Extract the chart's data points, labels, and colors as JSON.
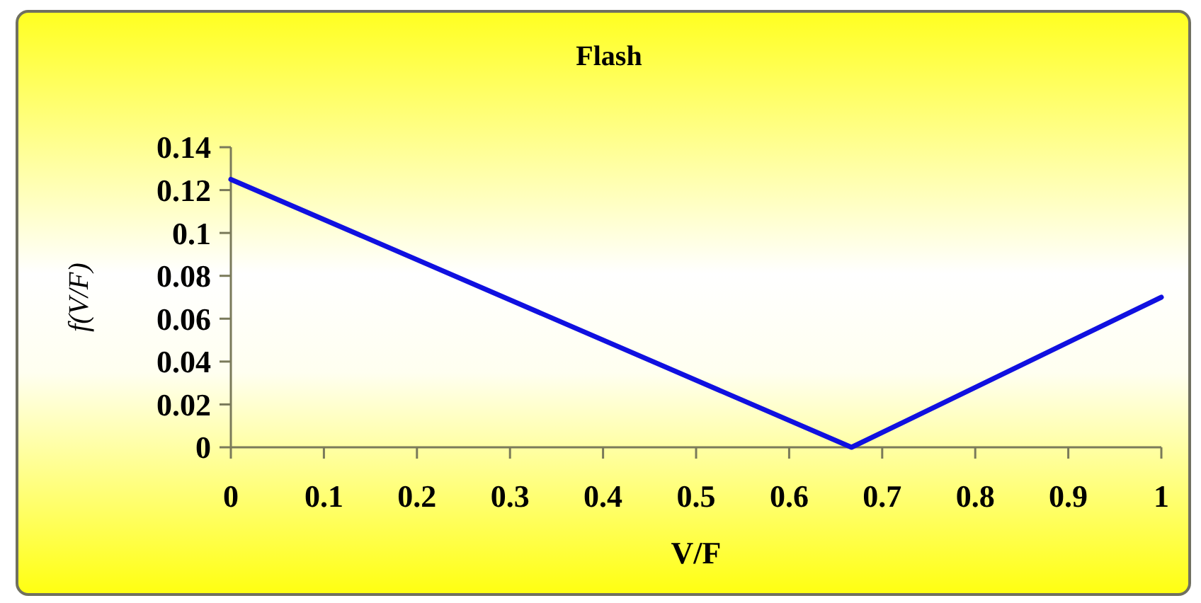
{
  "chart_data": {
    "type": "line",
    "title": "Flash",
    "xlabel": "V/F",
    "ylabel": "f(V/F)",
    "x": [
      0,
      0.667,
      1
    ],
    "series": [
      {
        "color": "#1010e0",
        "values": [
          0.125,
          0,
          0.07
        ]
      }
    ],
    "xlim": [
      0,
      1
    ],
    "xticks": [
      0,
      0.1,
      0.2,
      0.3,
      0.4,
      0.5,
      0.6,
      0.7,
      0.8,
      0.9,
      1
    ],
    "ylim": [
      0,
      0.14
    ],
    "yticks": [
      0,
      0.02,
      0.04,
      0.06,
      0.08,
      0.1,
      0.12,
      0.14
    ],
    "grid": false,
    "marker": "none",
    "line_style": "solid"
  }
}
